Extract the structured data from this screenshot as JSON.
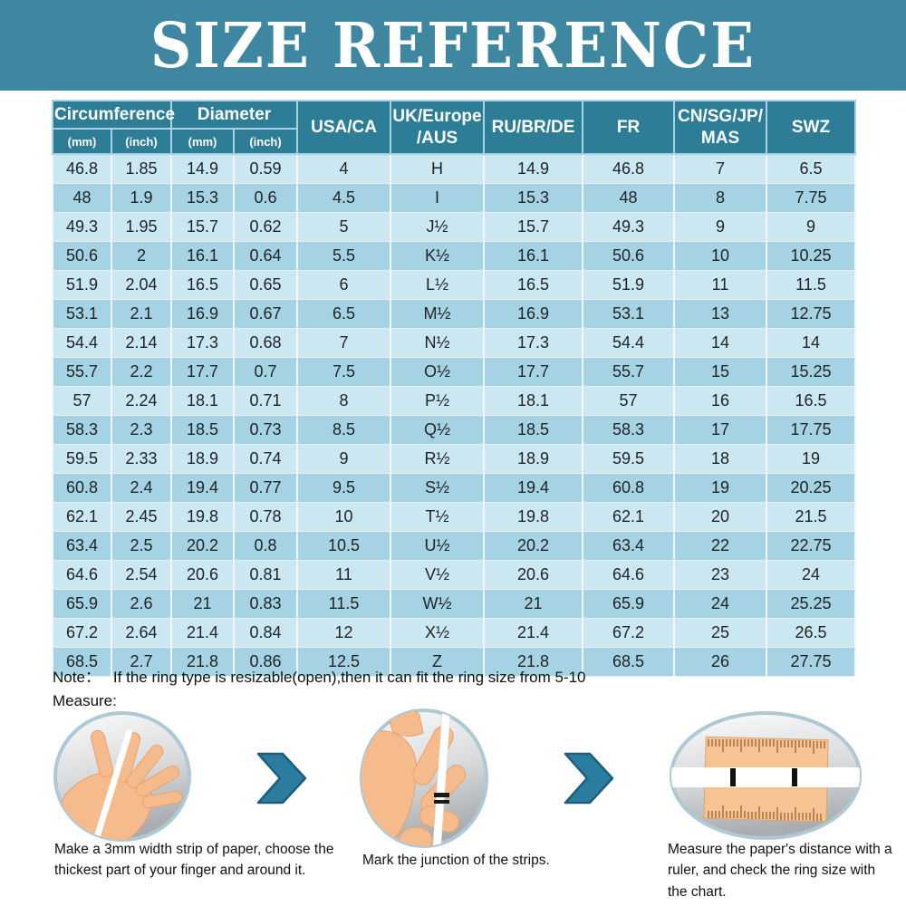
{
  "title": "SIZE REFERENCE",
  "colors": {
    "banner_teal": "#3f86a0",
    "header_cell_teal": "#2e7d97",
    "row_light_blue": "#cbe8f2",
    "row_dark_blue": "#a5d3e3",
    "arrow_teal": "#2b7da0",
    "skin": "#f6bb8d",
    "ruler_orange": "#f6c392"
  },
  "table": {
    "group_headers": {
      "circumference": "Circumference",
      "diameter": "Diameter"
    },
    "sub_headers": [
      "(mm)",
      "(inch)",
      "(mm)",
      "(inch)"
    ],
    "col_headers": {
      "usa_ca": "USA/CA",
      "uk_europe_line1": "UK/Europe",
      "uk_europe_line2": "/AUS",
      "ru_br_de": "RU/BR/DE",
      "fr": "FR",
      "cn_sg_jp_line1": "CN/SG/JP/",
      "cn_sg_jp_line2": "MAS",
      "swz": "SWZ"
    },
    "rows": [
      [
        "46.8",
        "1.85",
        "14.9",
        "0.59",
        "4",
        "H",
        "14.9",
        "46.8",
        "7",
        "6.5"
      ],
      [
        "48",
        "1.9",
        "15.3",
        "0.6",
        "4.5",
        "I",
        "15.3",
        "48",
        "8",
        "7.75"
      ],
      [
        "49.3",
        "1.95",
        "15.7",
        "0.62",
        "5",
        "J½",
        "15.7",
        "49.3",
        "9",
        "9"
      ],
      [
        "50.6",
        "2",
        "16.1",
        "0.64",
        "5.5",
        "K½",
        "16.1",
        "50.6",
        "10",
        "10.25"
      ],
      [
        "51.9",
        "2.04",
        "16.5",
        "0.65",
        "6",
        "L½",
        "16.5",
        "51.9",
        "11",
        "11.5"
      ],
      [
        "53.1",
        "2.1",
        "16.9",
        "0.67",
        "6.5",
        "M½",
        "16.9",
        "53.1",
        "13",
        "12.75"
      ],
      [
        "54.4",
        "2.14",
        "17.3",
        "0.68",
        "7",
        "N½",
        "17.3",
        "54.4",
        "14",
        "14"
      ],
      [
        "55.7",
        "2.2",
        "17.7",
        "0.7",
        "7.5",
        "O½",
        "17.7",
        "55.7",
        "15",
        "15.25"
      ],
      [
        "57",
        "2.24",
        "18.1",
        "0.71",
        "8",
        "P½",
        "18.1",
        "57",
        "16",
        "16.5"
      ],
      [
        "58.3",
        "2.3",
        "18.5",
        "0.73",
        "8.5",
        "Q½",
        "18.5",
        "58.3",
        "17",
        "17.75"
      ],
      [
        "59.5",
        "2.33",
        "18.9",
        "0.74",
        "9",
        "R½",
        "18.9",
        "59.5",
        "18",
        "19"
      ],
      [
        "60.8",
        "2.4",
        "19.4",
        "0.77",
        "9.5",
        "S½",
        "19.4",
        "60.8",
        "19",
        "20.25"
      ],
      [
        "62.1",
        "2.45",
        "19.8",
        "0.78",
        "10",
        "T½",
        "19.8",
        "62.1",
        "20",
        "21.5"
      ],
      [
        "63.4",
        "2.5",
        "20.2",
        "0.8",
        "10.5",
        "U½",
        "20.2",
        "63.4",
        "22",
        "22.75"
      ],
      [
        "64.6",
        "2.54",
        "20.6",
        "0.81",
        "11",
        "V½",
        "20.6",
        "64.6",
        "23",
        "24"
      ],
      [
        "65.9",
        "2.6",
        "21",
        "0.83",
        "11.5",
        "W½",
        "21",
        "65.9",
        "24",
        "25.25"
      ],
      [
        "67.2",
        "2.64",
        "21.4",
        "0.84",
        "12",
        "X½",
        "21.4",
        "67.2",
        "25",
        "26.5"
      ],
      [
        "68.5",
        "2.7",
        "21.8",
        "0.86",
        "12.5",
        "Z",
        "21.8",
        "68.5",
        "26",
        "27.75"
      ]
    ]
  },
  "note": {
    "label": "Note：",
    "text": "If the ring type is resizable(open),then it can fit the ring size from 5-10"
  },
  "measure": {
    "label": "Measure:",
    "steps": [
      {
        "caption": "Make a 3mm width strip of paper, choose the thickest part of your finger and around it."
      },
      {
        "caption": "Mark the junction of the strips."
      },
      {
        "caption": "Measure the paper's distance with a ruler, and check the ring size with the chart."
      }
    ]
  }
}
